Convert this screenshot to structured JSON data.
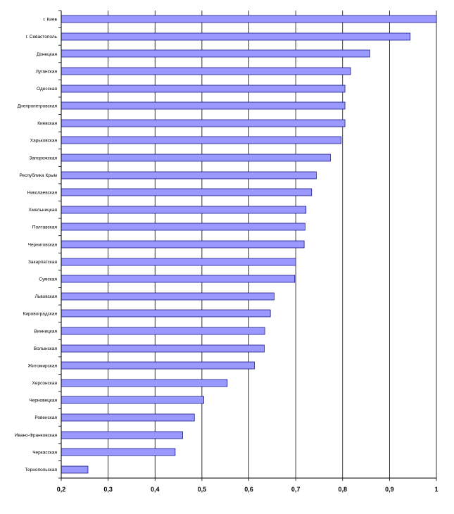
{
  "chart_data": {
    "type": "bar",
    "orientation": "horizontal",
    "categories": [
      "г. Киев",
      "г. Севастополь",
      "Донецкая",
      "Луганская",
      "Одесская",
      "Днепропетровская",
      "Киевская",
      "Харьковская",
      "Запорожская",
      "Республика Крым",
      "Николаевская",
      "Хмельницкая",
      "Полтавская",
      "Черниговская",
      "Закарпатская",
      "Сумская",
      "Львовская",
      "Кировоградская",
      "Винницкая",
      "Волынская",
      "Житомирская",
      "Херсонская",
      "Черновецкая",
      "Ровенская",
      "Ивано-Франковская",
      "Черкасская",
      "Тернопольская"
    ],
    "values": [
      1.0,
      0.944,
      0.858,
      0.817,
      0.805,
      0.805,
      0.805,
      0.797,
      0.774,
      0.744,
      0.734,
      0.722,
      0.72,
      0.718,
      0.7,
      0.698,
      0.654,
      0.646,
      0.634,
      0.633,
      0.612,
      0.554,
      0.504,
      0.484,
      0.459,
      0.443,
      0.257
    ],
    "xlim": [
      0.2,
      1.0
    ],
    "x_ticks": [
      "0,2",
      "0,3",
      "0,4",
      "0,5",
      "0,6",
      "0,7",
      "0,8",
      "0,9",
      "1"
    ],
    "x_tick_values": [
      0.2,
      0.3,
      0.4,
      0.5,
      0.6,
      0.7,
      0.8,
      0.9,
      1.0
    ],
    "grid": true,
    "legend": "none",
    "bar_color": "#9999ff",
    "bar_edge_color": "#000080"
  }
}
